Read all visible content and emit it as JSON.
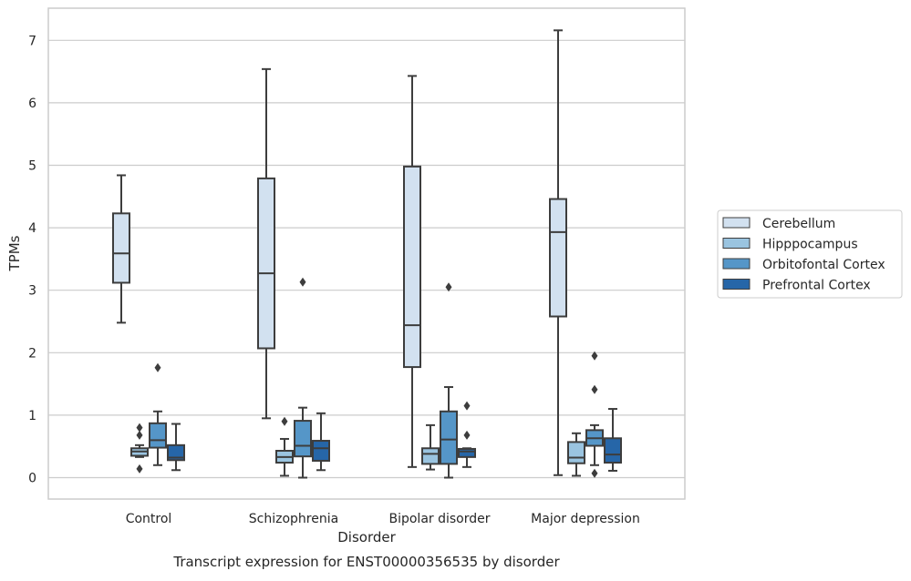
{
  "chart_data": {
    "type": "box",
    "caption": "Transcript expression for ENST00000356535 by disorder",
    "xlabel": "Disorder",
    "ylabel": "TPMs",
    "ylim": [
      -0.35,
      7.5
    ],
    "yticks": [
      0,
      1,
      2,
      3,
      4,
      5,
      6,
      7
    ],
    "categories": [
      "Control",
      "Schizophrenia",
      "Bipolar disorder",
      "Major depression"
    ],
    "grid": "horizontal",
    "legend_position": "right",
    "series": [
      {
        "name": "Cerebellum",
        "color": "#d2e1f0",
        "boxes": [
          {
            "whisker_low": 2.48,
            "q1": 3.12,
            "median": 3.59,
            "q3": 4.23,
            "whisker_high": 4.84,
            "outliers": []
          },
          {
            "whisker_low": 0.95,
            "q1": 2.07,
            "median": 3.27,
            "q3": 4.79,
            "whisker_high": 6.54,
            "outliers": []
          },
          {
            "whisker_low": 0.17,
            "q1": 1.77,
            "median": 2.44,
            "q3": 4.98,
            "whisker_high": 6.43,
            "outliers": []
          },
          {
            "whisker_low": 0.04,
            "q1": 2.58,
            "median": 3.93,
            "q3": 4.46,
            "whisker_high": 7.16,
            "outliers": []
          }
        ]
      },
      {
        "name": "Hipppocampus",
        "color": "#9ac4e0",
        "boxes": [
          {
            "whisker_low": 0.33,
            "q1": 0.35,
            "median": 0.42,
            "q3": 0.47,
            "whisker_high": 0.52,
            "outliers": [
              0.14,
              0.68,
              0.8
            ]
          },
          {
            "whisker_low": 0.03,
            "q1": 0.24,
            "median": 0.33,
            "q3": 0.43,
            "whisker_high": 0.62,
            "outliers": [
              0.9
            ]
          },
          {
            "whisker_low": 0.13,
            "q1": 0.22,
            "median": 0.38,
            "q3": 0.47,
            "whisker_high": 0.84,
            "outliers": []
          },
          {
            "whisker_low": 0.03,
            "q1": 0.23,
            "median": 0.32,
            "q3": 0.57,
            "whisker_high": 0.71,
            "outliers": []
          }
        ]
      },
      {
        "name": "Orbitofontal Cortex",
        "color": "#5596c8",
        "boxes": [
          {
            "whisker_low": 0.2,
            "q1": 0.48,
            "median": 0.6,
            "q3": 0.87,
            "whisker_high": 1.06,
            "outliers": [
              1.76
            ]
          },
          {
            "whisker_low": 0.0,
            "q1": 0.34,
            "median": 0.51,
            "q3": 0.91,
            "whisker_high": 1.12,
            "outliers": [
              3.13
            ]
          },
          {
            "whisker_low": 0.0,
            "q1": 0.22,
            "median": 0.61,
            "q3": 1.06,
            "whisker_high": 1.45,
            "outliers": [
              3.05
            ]
          },
          {
            "whisker_low": 0.2,
            "q1": 0.51,
            "median": 0.63,
            "q3": 0.76,
            "whisker_high": 0.84,
            "outliers": [
              0.07,
              1.41,
              1.95
            ]
          }
        ]
      },
      {
        "name": "Prefrontal Cortex",
        "color": "#2666a8",
        "boxes": [
          {
            "whisker_low": 0.12,
            "q1": 0.28,
            "median": 0.32,
            "q3": 0.52,
            "whisker_high": 0.86,
            "outliers": []
          },
          {
            "whisker_low": 0.12,
            "q1": 0.27,
            "median": 0.47,
            "q3": 0.59,
            "whisker_high": 1.03,
            "outliers": []
          },
          {
            "whisker_low": 0.17,
            "q1": 0.33,
            "median": 0.42,
            "q3": 0.46,
            "whisker_high": 0.47,
            "outliers": [
              0.68,
              1.15
            ]
          },
          {
            "whisker_low": 0.11,
            "q1": 0.24,
            "median": 0.37,
            "q3": 0.63,
            "whisker_high": 1.1,
            "outliers": []
          }
        ]
      }
    ]
  }
}
